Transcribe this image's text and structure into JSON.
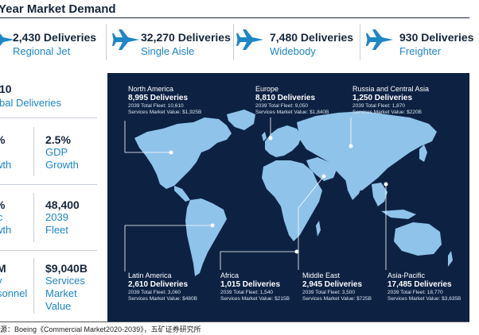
{
  "header": {
    "title": "Year Market Demand"
  },
  "deliveries_by_type": [
    {
      "value": "2,430 Deliveries",
      "label": "Regional Jet",
      "icon": "airplane-icon"
    },
    {
      "value": "32,270 Deliveries",
      "label": "Single Aisle",
      "icon": "airplane-icon"
    },
    {
      "value": "7,480 Deliveries",
      "label": "Widebody",
      "icon": "airplane-icon"
    },
    {
      "value": "930 Deliveries",
      "label": "Freighter",
      "icon": "airplane-icon"
    }
  ],
  "stats": {
    "total_deliveries": {
      "value": "10",
      "label": "bal Deliveries"
    },
    "traffic_growth": {
      "value": "%",
      "label_1": "t",
      "label_2": "wth"
    },
    "gdp_growth": {
      "value": "2.5%",
      "label_1": "GDP",
      "label_2": "Growth"
    },
    "fleet_growth": {
      "value": "%",
      "label_1": "ic",
      "label_2": "wth"
    },
    "fleet_2039": {
      "value": "48,400",
      "label_1": "2039",
      "label_2": "Fleet"
    },
    "personnel": {
      "value": "M",
      "label_1": "v",
      "label_2": "sonnel"
    },
    "services": {
      "value": "$9,040B",
      "label_1": "Services",
      "label_2": "Market",
      "label_3": "Value"
    }
  },
  "regions": [
    {
      "name": "North America",
      "deliveries": "8,995 Deliveries",
      "fleet": "2039 Total Fleet: 10,610",
      "services": "Services Market Value: $1,925B"
    },
    {
      "name": "Europe",
      "deliveries": "8,810 Deliveries",
      "fleet": "2039 Total Fleet: 9,050",
      "services": "Services Market Value: $1,840B"
    },
    {
      "name": "Russia and Central Asia",
      "deliveries": "1,250 Deliveries",
      "fleet": "2039 Total Fleet: 1,870",
      "services": "Services Market Value: $220B"
    },
    {
      "name": "Latin America",
      "deliveries": "2,610 Deliveries",
      "fleet": "2039 Total Fleet: 3,060",
      "services": "Services Market Value: $480B"
    },
    {
      "name": "Africa",
      "deliveries": "1,015 Deliveries",
      "fleet": "2039 Total Fleet: 1,540",
      "services": "Services Market Value: $215B"
    },
    {
      "name": "Middle East",
      "deliveries": "2,945 Deliveries",
      "fleet": "2039 Total Fleet: 3,500",
      "services": "Services Market Value: $725B"
    },
    {
      "name": "Asia-Pacific",
      "deliveries": "17,485 Deliveries",
      "fleet": "2039 Total Fleet: 18,770",
      "services": "Services Market Value: $3,635B"
    }
  ],
  "colors": {
    "navy": "#0d2243",
    "accent_blue": "#1e86c7",
    "land": "#8fc3ea"
  },
  "source": "源：Boeing《Commercial  Market2020-2039》，五矿证券研究所"
}
